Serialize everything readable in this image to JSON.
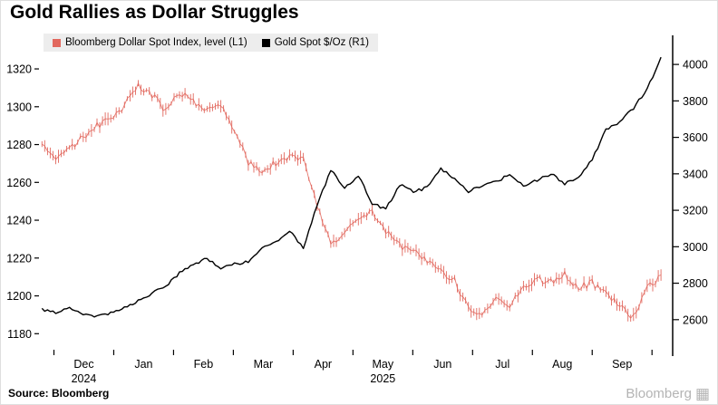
{
  "title": "Gold Rallies as Dollar Struggles",
  "source": "Source: Bloomberg",
  "watermark": {
    "text": "Bloomberg",
    "icon_glyph": "▦"
  },
  "legend": [
    {
      "label": "Bloomberg Dollar Spot Index, level (L1)",
      "color": "#e2685e"
    },
    {
      "label": "Gold Spot $/Oz  (R1)",
      "color": "#000000"
    }
  ],
  "chart_data": {
    "type": "line",
    "title": "Gold Rallies as Dollar Struggles",
    "grid": false,
    "legend_position": "top",
    "x_unit": "months_since_2024-12-01",
    "x": [
      -0.2,
      0.03,
      0.26,
      0.49,
      0.72,
      0.95,
      1.18,
      1.41,
      1.64,
      1.87,
      2.1,
      2.33,
      2.56,
      2.79,
      3.02,
      3.25,
      3.48,
      3.71,
      3.94,
      4.17,
      4.4,
      4.63,
      4.86,
      5.09,
      5.32,
      5.55,
      5.78,
      6.01,
      6.24,
      6.47,
      6.7,
      6.93,
      7.16,
      7.39,
      7.62,
      7.85,
      8.08,
      8.31,
      8.54,
      8.77,
      9.0,
      9.23,
      9.46,
      9.69,
      9.92,
      10.15
    ],
    "series": [
      {
        "name": "Bloomberg Dollar Spot Index, level (L1)",
        "axis": "left",
        "style": "hlc_bars",
        "color": "#e2685e",
        "values": [
          1281,
          1272,
          1277,
          1284,
          1290,
          1294,
          1300,
          1312,
          1306,
          1298,
          1308,
          1303,
          1297,
          1301,
          1288,
          1270,
          1266,
          1270,
          1273,
          1272,
          1248,
          1228,
          1234,
          1240,
          1244,
          1234,
          1227,
          1224,
          1218,
          1213,
          1208,
          1193,
          1190,
          1199,
          1195,
          1204,
          1209,
          1207,
          1212,
          1204,
          1207,
          1201,
          1195,
          1189,
          1204,
          1211
        ]
      },
      {
        "name": "Gold Spot $/Oz (R1)",
        "axis": "right",
        "style": "line",
        "color": "#000000",
        "values": [
          2655,
          2640,
          2660,
          2625,
          2615,
          2640,
          2665,
          2705,
          2745,
          2785,
          2855,
          2900,
          2935,
          2880,
          2905,
          2920,
          3000,
          3025,
          3090,
          2995,
          3225,
          3420,
          3320,
          3390,
          3240,
          3205,
          3340,
          3300,
          3325,
          3430,
          3370,
          3305,
          3335,
          3355,
          3395,
          3330,
          3365,
          3400,
          3345,
          3375,
          3480,
          3640,
          3685,
          3760,
          3865,
          4040
        ]
      }
    ],
    "left_axis": {
      "ticks": [
        1180,
        1200,
        1220,
        1240,
        1260,
        1280,
        1300,
        1320
      ],
      "range": [
        1172,
        1332
      ]
    },
    "right_axis": {
      "ticks": [
        2600,
        2800,
        3000,
        3200,
        3400,
        3600,
        3800,
        4000
      ],
      "range": [
        2440,
        4100
      ]
    },
    "x_axis": {
      "month_labels": [
        "Dec",
        "Jan",
        "Feb",
        "Mar",
        "Apr",
        "May",
        "Jun",
        "Jul",
        "Aug",
        "Sep"
      ],
      "year_labels": [
        {
          "text": "2024",
          "month_index": 0
        },
        {
          "text": "2025",
          "month_index": 5
        }
      ],
      "range": [
        -0.25,
        10.3
      ]
    }
  }
}
